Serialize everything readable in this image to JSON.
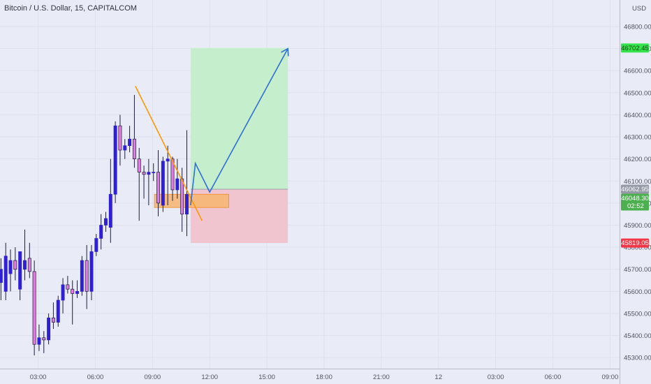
{
  "header": {
    "symbol_title": "Bitcoin / U.S. Dollar, 15, CAPITALCOM",
    "currency": "USD"
  },
  "colors": {
    "background": "#e9ecf6",
    "bull_candle": "#2f1fd6",
    "bear_candle": "#e07ce1",
    "trendline": "#ff9800",
    "projection": "#2e6fd9",
    "target_zone": "#c3eec9",
    "stop_zone": "#f0c3cc",
    "entry_zone": "#f7b56f",
    "target_tag": "#35e44a",
    "stop_tag": "#f23645",
    "entry_tag": "#959aa6",
    "last_tag": "#4caf50"
  },
  "chart_data": {
    "type": "candlestick",
    "symbol": "BTCUSD",
    "interval": "15",
    "exchange": "CAPITALCOM",
    "y_axis": {
      "ticks": [
        45300,
        45400,
        45500,
        45600,
        45700,
        45800,
        45900,
        46000,
        46100,
        46200,
        46300,
        46400,
        46500,
        46600,
        46700,
        46800
      ],
      "tick_labels": [
        "45300.00",
        "45400.00",
        "45500.00",
        "45600.00",
        "45700.00",
        "45800.00",
        "45900.00",
        "46000.00",
        "46100.00",
        "46200.00",
        "46300.00",
        "46400.00",
        "46500.00",
        "46600.00",
        "46700.00",
        "46800.00"
      ],
      "range": [
        45250,
        46920
      ]
    },
    "x_axis": {
      "range": [
        0.0,
        32.5
      ],
      "ticks": [
        {
          "t": 2.0,
          "label": "03:00"
        },
        {
          "t": 5.0,
          "label": "06:00"
        },
        {
          "t": 8.0,
          "label": "09:00"
        },
        {
          "t": 11.0,
          "label": "12:00"
        },
        {
          "t": 14.0,
          "label": "15:00"
        },
        {
          "t": 17.0,
          "label": "18:00"
        },
        {
          "t": 20.0,
          "label": "21:00"
        },
        {
          "t": 23.0,
          "label": "12"
        },
        {
          "t": 26.0,
          "label": "03:00"
        },
        {
          "t": 29.0,
          "label": "06:00"
        },
        {
          "t": 32.0,
          "label": "09:00"
        }
      ]
    },
    "candle_hours": 0.25,
    "candles": [
      [
        -0.2,
        45590,
        45700,
        45500,
        45650
      ],
      [
        0.05,
        45640,
        45750,
        45560,
        45700
      ],
      [
        0.3,
        45600,
        45820,
        45560,
        45760
      ],
      [
        0.55,
        45680,
        45790,
        45600,
        45740
      ],
      [
        0.8,
        45740,
        45800,
        45650,
        45700
      ],
      [
        1.05,
        45610,
        45780,
        45560,
        45780
      ],
      [
        1.3,
        45700,
        45880,
        45650,
        45740
      ],
      [
        1.55,
        45750,
        45820,
        45660,
        45690
      ],
      [
        1.8,
        45690,
        45740,
        45310,
        45360
      ],
      [
        2.05,
        45360,
        45450,
        45330,
        45390
      ],
      [
        2.3,
        45390,
        45420,
        45320,
        45380
      ],
      [
        2.55,
        45380,
        45500,
        45360,
        45480
      ],
      [
        2.8,
        45480,
        45550,
        45430,
        45460
      ],
      [
        3.05,
        45460,
        45580,
        45440,
        45560
      ],
      [
        3.3,
        45560,
        45660,
        45500,
        45630
      ],
      [
        3.55,
        45630,
        45670,
        45590,
        45610
      ],
      [
        3.8,
        45610,
        45650,
        45450,
        45590
      ],
      [
        4.05,
        45590,
        45650,
        45570,
        45600
      ],
      [
        4.3,
        45600,
        45760,
        45580,
        45740
      ],
      [
        4.55,
        45740,
        45810,
        45520,
        45600
      ],
      [
        4.8,
        45600,
        45810,
        45560,
        45780
      ],
      [
        5.05,
        45780,
        45860,
        45760,
        45840
      ],
      [
        5.3,
        45840,
        45950,
        45790,
        45900
      ],
      [
        5.55,
        45900,
        45960,
        45870,
        45930
      ],
      [
        5.8,
        45890,
        46200,
        45820,
        46040
      ],
      [
        6.05,
        46040,
        46370,
        46000,
        46350
      ],
      [
        6.3,
        46350,
        46400,
        46170,
        46240
      ],
      [
        6.55,
        46240,
        46290,
        46200,
        46260
      ],
      [
        6.8,
        46260,
        46350,
        46230,
        46290
      ],
      [
        7.05,
        46290,
        46490,
        46160,
        46200
      ],
      [
        7.3,
        46200,
        46250,
        45920,
        46140
      ],
      [
        7.55,
        46140,
        46170,
        46020,
        46130
      ],
      [
        7.8,
        46130,
        46200,
        45990,
        46140
      ],
      [
        8.05,
        46140,
        46180,
        46100,
        46140
      ],
      [
        8.3,
        46140,
        46240,
        45940,
        46000
      ],
      [
        8.55,
        45990,
        46210,
        45960,
        46190
      ],
      [
        8.8,
        46190,
        46260,
        45990,
        46200
      ],
      [
        9.05,
        46200,
        46210,
        46010,
        46060
      ],
      [
        9.3,
        46060,
        46200,
        46020,
        46110
      ],
      [
        9.55,
        46110,
        46160,
        45870,
        45950
      ],
      [
        9.8,
        45950,
        46330,
        45850,
        46040
      ]
    ],
    "trendline": {
      "from": [
        7.1,
        46530
      ],
      "to": [
        10.6,
        45920
      ]
    },
    "entry_zone": {
      "t0": 8.1,
      "t1": 12.0,
      "low": 45980,
      "high": 46040
    },
    "position_box": {
      "t0": 10.0,
      "t1": 15.1,
      "entry": 46062.95,
      "target": 46702.45,
      "stop": 45819.05
    },
    "projection_path": [
      [
        10.0,
        45990
      ],
      [
        10.25,
        46180
      ],
      [
        11.0,
        46050
      ],
      [
        15.1,
        46700
      ]
    ],
    "price_tags": [
      {
        "role": "target",
        "price": 46702.45,
        "label": "46702.45"
      },
      {
        "role": "entry",
        "price": 46062.95,
        "label": "46062.95"
      },
      {
        "role": "last",
        "price": 46048.3,
        "label": "46048.30",
        "countdown": "02:52"
      },
      {
        "role": "stop",
        "price": 45819.05,
        "label": "45819.05"
      }
    ]
  }
}
